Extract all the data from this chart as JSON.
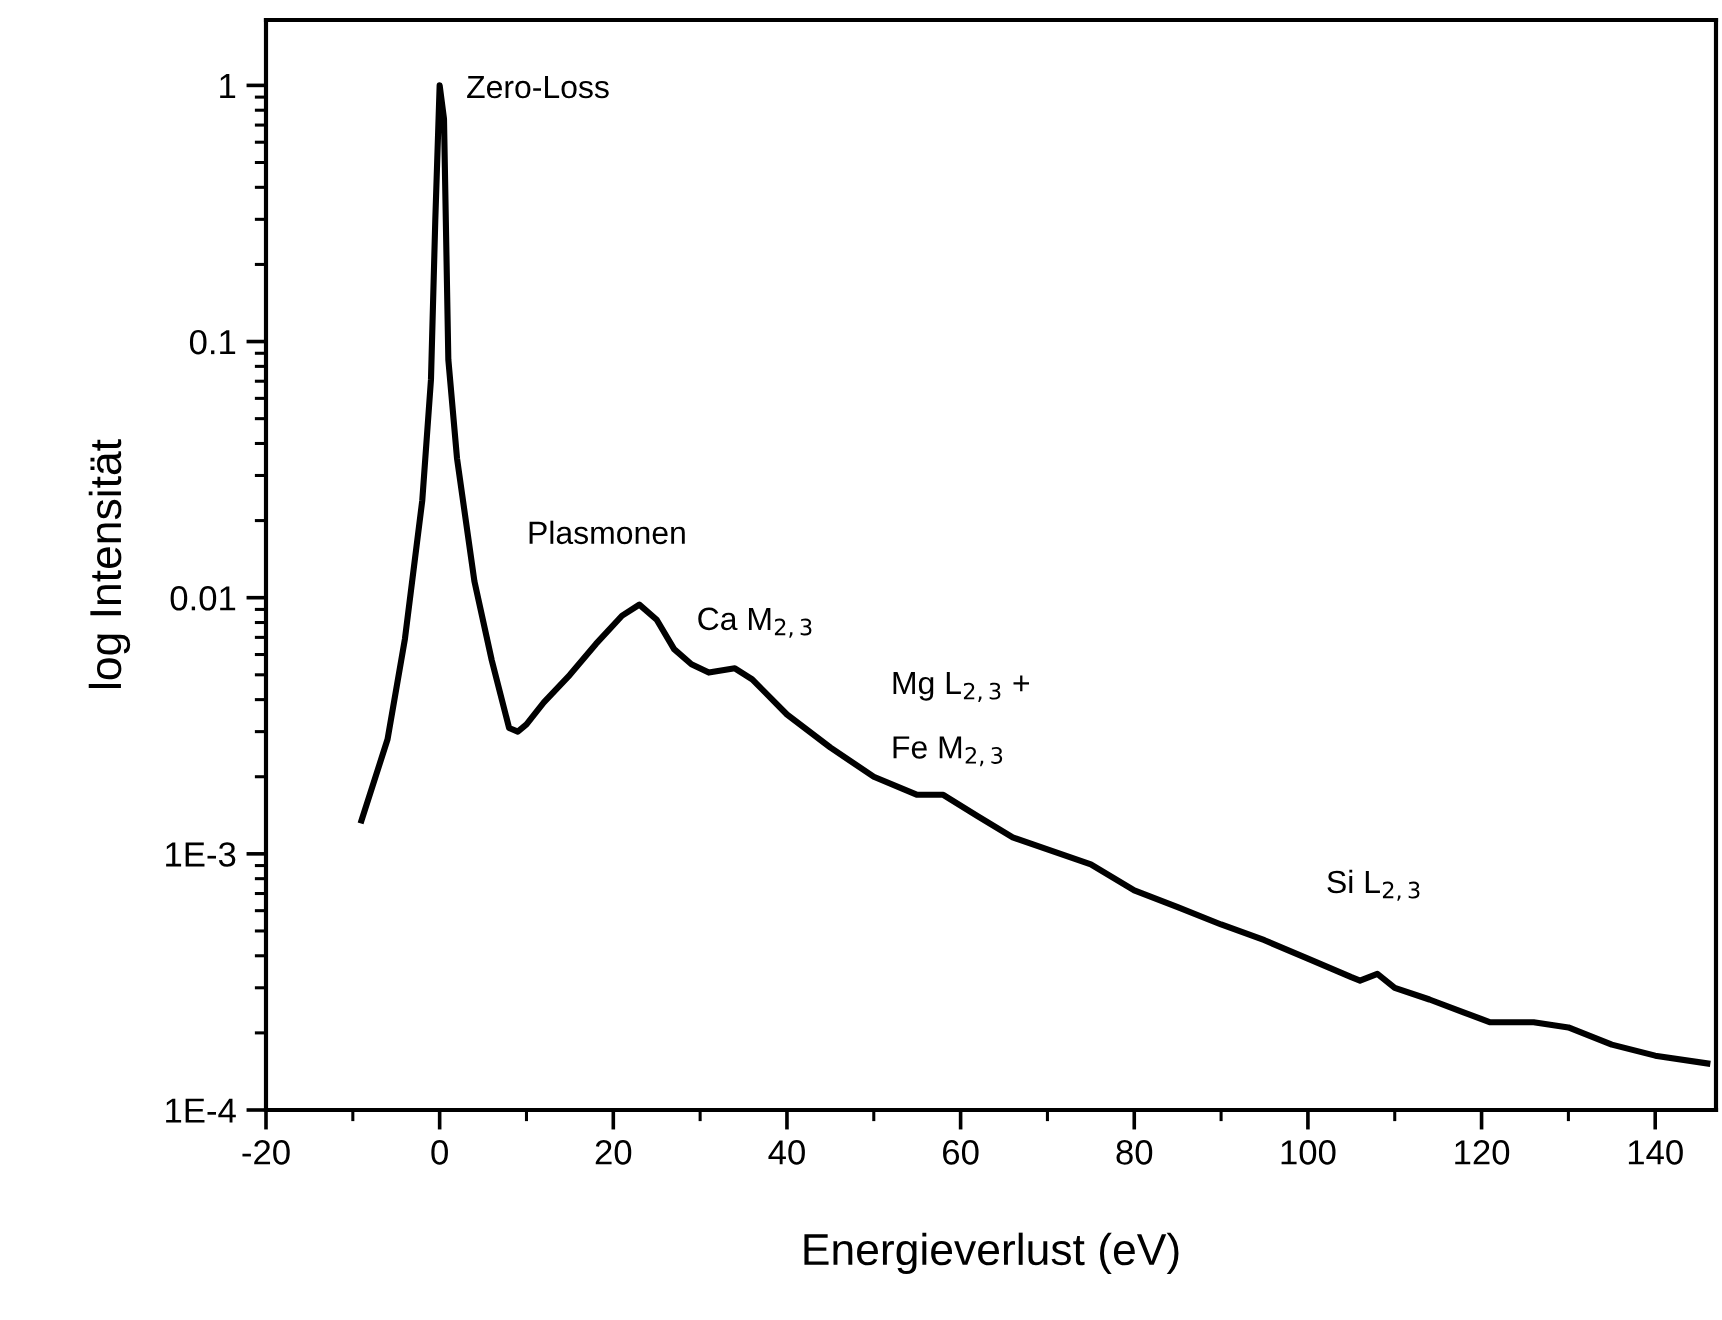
{
  "chart_data": {
    "type": "line",
    "xlabel": "Energieverlust (eV)",
    "ylabel": "log Intensität",
    "log": "y",
    "xlim": [
      -20,
      147
    ],
    "ylim": [
      0.0001,
      1.8
    ],
    "xticks": [
      -20,
      0,
      20,
      40,
      60,
      80,
      100,
      120,
      140
    ],
    "yticks": [
      {
        "value": 0.0001,
        "label": "1E-4"
      },
      {
        "value": 0.001,
        "label": "1E-3"
      },
      0.01,
      0.1,
      1
    ],
    "grid": false,
    "marker": "none",
    "line_style": "solid",
    "x": [
      -9,
      -6,
      -4,
      -2,
      -1,
      -0.5,
      0,
      0.5,
      1,
      2,
      4,
      6,
      8,
      9,
      10,
      12,
      15,
      18,
      21,
      23,
      25,
      27,
      29,
      31,
      34,
      36,
      40,
      45,
      50,
      55,
      58,
      62,
      66,
      70,
      75,
      80,
      85,
      90,
      95,
      100,
      105,
      106,
      108,
      110,
      114,
      118,
      121,
      126,
      130,
      135,
      140,
      146
    ],
    "series": [
      {
        "color": "#000000",
        "values": [
          0.00135,
          0.0028,
          0.0069,
          0.024,
          0.071,
          0.3,
          1.0,
          0.74,
          0.085,
          0.035,
          0.0116,
          0.0057,
          0.0031,
          0.003,
          0.0032,
          0.0039,
          0.005,
          0.0066,
          0.0085,
          0.0094,
          0.0082,
          0.0063,
          0.0055,
          0.0051,
          0.0053,
          0.0048,
          0.0035,
          0.0026,
          0.002,
          0.0017,
          0.0017,
          0.0014,
          0.00116,
          0.00104,
          0.00091,
          0.00072,
          0.00062,
          0.00053,
          0.00046,
          0.00039,
          0.00033,
          0.00032,
          0.00034,
          0.0003,
          0.00027,
          0.00024,
          0.00022,
          0.00022,
          0.00021,
          0.00018,
          0.000163,
          0.000152
        ]
      }
    ],
    "annotations": [
      "Zero-Loss",
      "Plasmonen",
      "Ca M$_{2,3}$",
      "Mg L$_{2,3}$ +",
      "Fe M$_{2,3}$",
      "Si L$_{2,3}$"
    ]
  }
}
